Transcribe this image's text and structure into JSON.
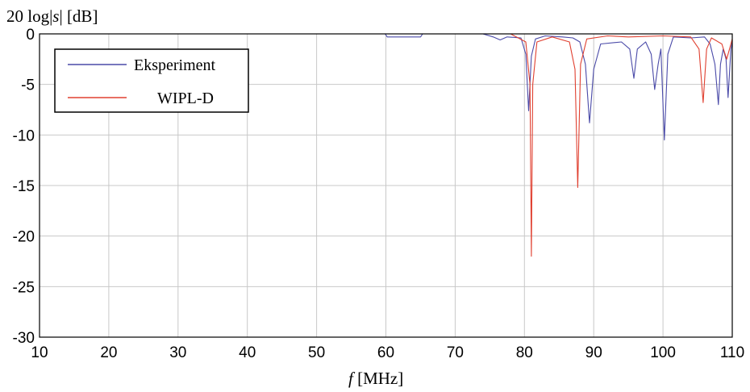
{
  "chart_data": {
    "type": "line",
    "ylabel": {
      "prefix": "20 log|",
      "var": "s",
      "suffix": "| [dB]"
    },
    "xlabel": {
      "var": "f",
      "unit": " [MHz]"
    },
    "xlim": [
      10,
      110
    ],
    "ylim": [
      -30,
      0
    ],
    "xticks": [
      10,
      20,
      30,
      40,
      50,
      60,
      70,
      80,
      90,
      100,
      110
    ],
    "yticks": [
      0,
      -5,
      -10,
      -15,
      -20,
      -25,
      -30
    ],
    "grid": true,
    "legend_position": "top-left",
    "series": [
      {
        "name": "Eksperiment",
        "color": "#4a4aa8",
        "x": [
          10,
          59.9,
          60.2,
          65,
          65.3,
          74,
          75.5,
          76.5,
          77.5,
          79.5,
          80.2,
          80.6,
          81.0,
          81.6,
          83,
          85.5,
          87,
          88,
          88.8,
          89.4,
          90.0,
          91,
          94,
          95.2,
          95.8,
          96.3,
          97.5,
          98.3,
          98.8,
          99.3,
          99.7,
          100.2,
          100.7,
          101.5,
          104,
          106,
          106.8,
          107.5,
          108.0,
          108.3,
          108.7,
          109.1,
          109.4,
          109.8,
          110
        ],
        "y": [
          0,
          0,
          -0.3,
          -0.3,
          0,
          0,
          -0.3,
          -0.6,
          -0.3,
          -0.4,
          -2.0,
          -7.6,
          -2.2,
          -0.5,
          -0.2,
          -0.3,
          -0.4,
          -0.8,
          -3.0,
          -8.8,
          -3.5,
          -1.0,
          -0.8,
          -1.5,
          -4.4,
          -1.5,
          -0.8,
          -2.0,
          -5.5,
          -3.0,
          -1.5,
          -10.5,
          -2.0,
          -0.3,
          -0.4,
          -0.3,
          -1.0,
          -3.0,
          -7.0,
          -3.0,
          -1.5,
          -2.5,
          -6.3,
          -1.5,
          -0.8
        ]
      },
      {
        "name": "WIPL-D",
        "color": "#e04030",
        "x": [
          10,
          78,
          80.2,
          80.8,
          81.0,
          81.2,
          81.8,
          84,
          86.5,
          87.3,
          87.7,
          88.1,
          89,
          92,
          95,
          100,
          104,
          105.2,
          105.8,
          106.3,
          107,
          108.5,
          109.2,
          109.8,
          110
        ],
        "y": [
          0,
          0,
          -0.8,
          -5.0,
          -22.0,
          -5.0,
          -0.8,
          -0.3,
          -0.8,
          -3.5,
          -15.2,
          -3.0,
          -0.5,
          -0.2,
          -0.3,
          -0.2,
          -0.3,
          -1.5,
          -6.8,
          -1.5,
          -0.4,
          -1.0,
          -2.5,
          -1.0,
          -0.5
        ]
      }
    ]
  }
}
